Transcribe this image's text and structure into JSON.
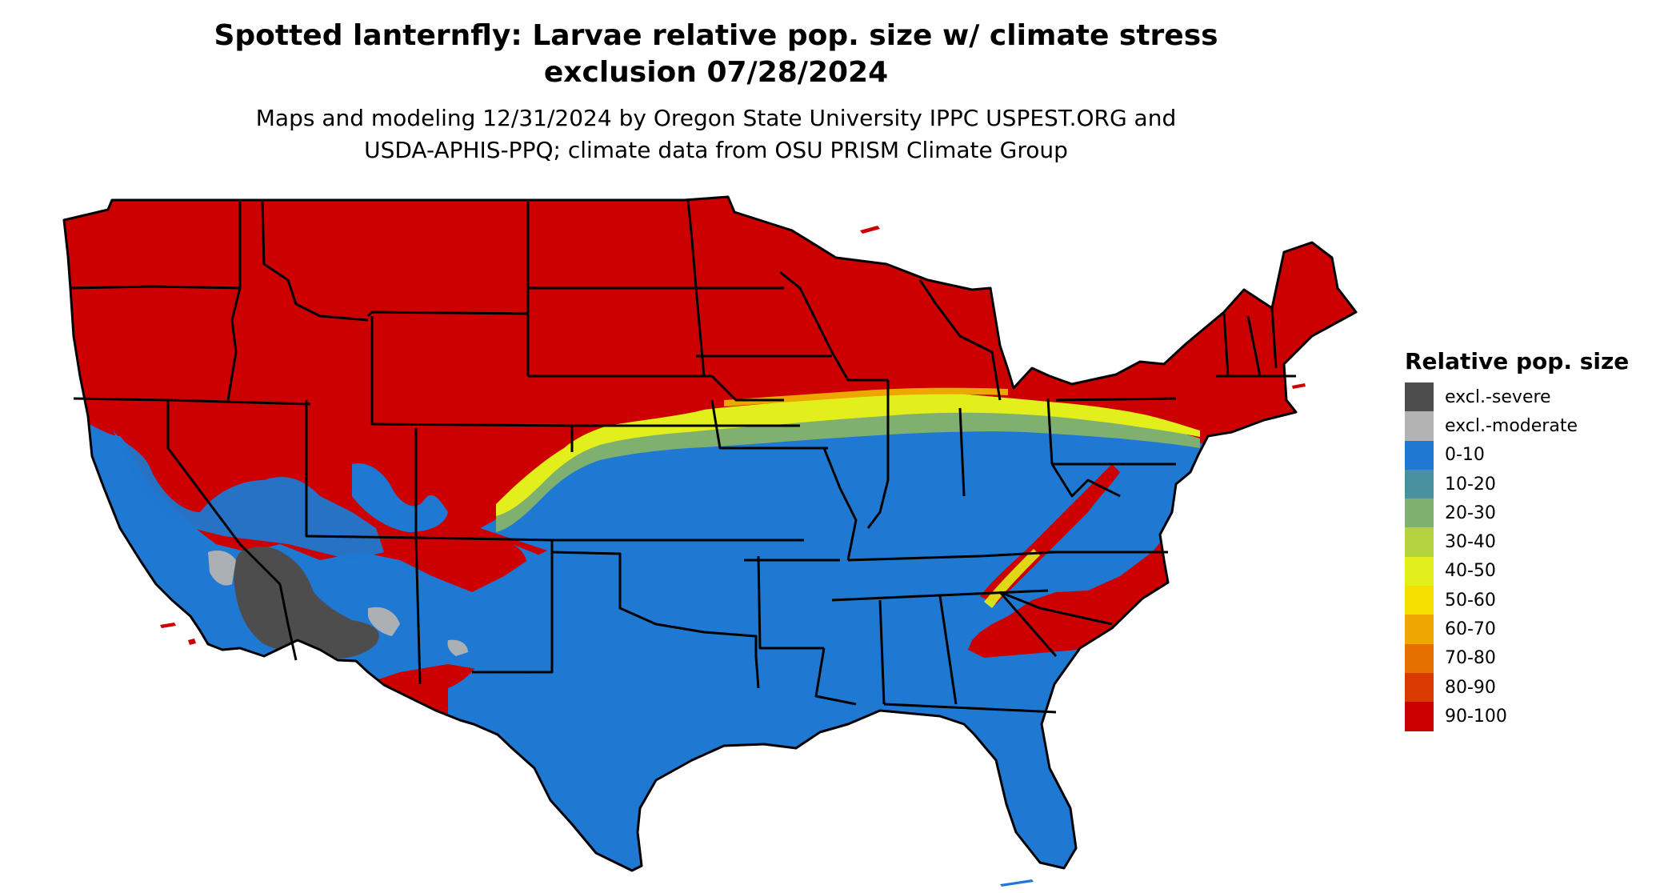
{
  "title": {
    "line1": "Spotted lanternfly: Larvae relative pop. size w/ climate stress",
    "line2": "exclusion 07/28/2024"
  },
  "subtitle": {
    "line1": "Maps and modeling 12/31/2024 by Oregon State University IPPC USPEST.ORG and",
    "line2": "USDA-APHIS-PPQ; climate data from OSU PRISM Climate Group"
  },
  "legend": {
    "title": "Relative pop. size",
    "items": [
      {
        "label": "excl.-severe",
        "color": "#4d4d4d"
      },
      {
        "label": "excl.-moderate",
        "color": "#b3b3b3"
      },
      {
        "label": "0-10",
        "color": "#1f78d1"
      },
      {
        "label": "10-20",
        "color": "#4a919f"
      },
      {
        "label": "20-30",
        "color": "#7fb06f"
      },
      {
        "label": "30-40",
        "color": "#b5d23f"
      },
      {
        "label": "40-50",
        "color": "#e2ef1a"
      },
      {
        "label": "50-60",
        "color": "#f6de00"
      },
      {
        "label": "60-70",
        "color": "#eda700"
      },
      {
        "label": "70-80",
        "color": "#e47000"
      },
      {
        "label": "80-90",
        "color": "#d93a00"
      },
      {
        "label": "90-100",
        "color": "#cc0000"
      }
    ]
  },
  "map": {
    "colors": {
      "high": "#cc0000",
      "low": "#1f78d1",
      "transition_yellow": "#e2ef1a",
      "transition_green": "#7fb06f",
      "excluded_severe": "#4d4d4d",
      "excluded_moderate": "#b3b3b3",
      "border": "#000000"
    }
  }
}
